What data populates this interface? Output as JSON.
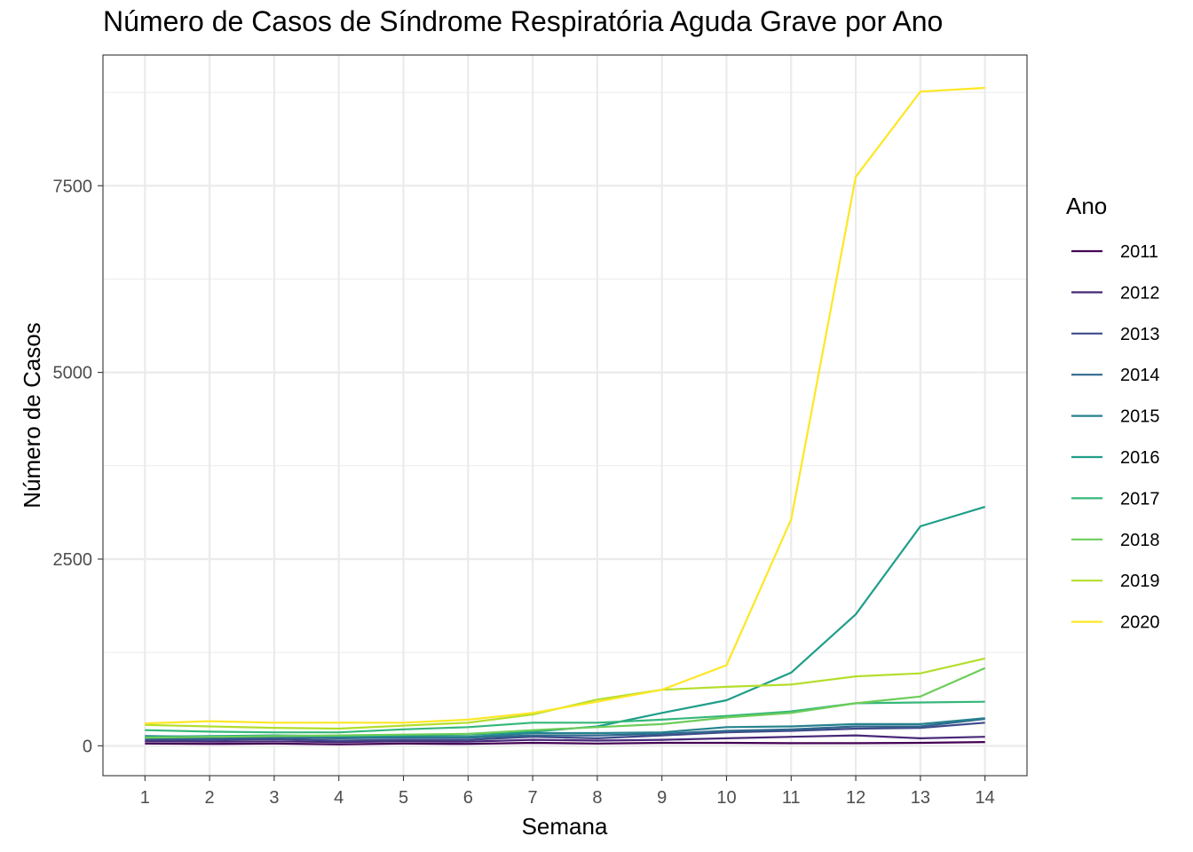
{
  "chart_data": {
    "type": "line",
    "title": "Número de Casos de Síndrome Respiratória Aguda Grave por Ano",
    "xlabel": "Semana",
    "ylabel": "Número de Casos",
    "x": [
      1,
      2,
      3,
      4,
      5,
      6,
      7,
      8,
      9,
      10,
      11,
      12,
      13,
      14
    ],
    "y_ticks": [
      0,
      2500,
      5000,
      7500
    ],
    "y_tick_labels": [
      "0",
      "2500",
      "5000",
      "7500"
    ],
    "ylim": [
      -400,
      9250
    ],
    "xlim": [
      0.35,
      14.65
    ],
    "grid": true,
    "legend": {
      "title": "Ano",
      "position": "right"
    },
    "series": [
      {
        "name": "2011",
        "color": "#440154",
        "values": [
          30,
          25,
          30,
          20,
          30,
          25,
          40,
          30,
          40,
          40,
          35,
          35,
          40,
          50
        ]
      },
      {
        "name": "2012",
        "color": "#482878",
        "values": [
          60,
          55,
          60,
          50,
          60,
          55,
          80,
          70,
          80,
          100,
          120,
          140,
          100,
          120
        ]
      },
      {
        "name": "2013",
        "color": "#3E4A89",
        "values": [
          80,
          80,
          90,
          70,
          80,
          80,
          120,
          100,
          140,
          180,
          200,
          230,
          240,
          310
        ]
      },
      {
        "name": "2014",
        "color": "#31688E",
        "values": [
          100,
          100,
          110,
          100,
          110,
          110,
          140,
          140,
          160,
          200,
          220,
          260,
          260,
          360
        ]
      },
      {
        "name": "2015",
        "color": "#26828E",
        "values": [
          130,
          120,
          130,
          120,
          120,
          120,
          170,
          170,
          180,
          250,
          260,
          290,
          290,
          370
        ]
      },
      {
        "name": "2016",
        "color": "#1F9E89",
        "values": [
          120,
          130,
          140,
          130,
          140,
          150,
          190,
          260,
          440,
          610,
          980,
          1760,
          2940,
          3200
        ]
      },
      {
        "name": "2017",
        "color": "#35B779",
        "values": [
          210,
          190,
          180,
          180,
          220,
          250,
          310,
          310,
          350,
          400,
          460,
          570,
          580,
          590
        ]
      },
      {
        "name": "2018",
        "color": "#6DCD59",
        "values": [
          110,
          120,
          130,
          140,
          150,
          160,
          210,
          250,
          290,
          380,
          440,
          570,
          660,
          1040
        ]
      },
      {
        "name": "2019",
        "color": "#B4DE2C",
        "values": [
          280,
          260,
          240,
          230,
          270,
          310,
          420,
          620,
          750,
          790,
          820,
          930,
          970,
          1170
        ]
      },
      {
        "name": "2020",
        "color": "#FDE725",
        "values": [
          300,
          330,
          310,
          310,
          310,
          350,
          440,
          590,
          750,
          1080,
          3030,
          7620,
          8760,
          8810
        ]
      }
    ]
  }
}
